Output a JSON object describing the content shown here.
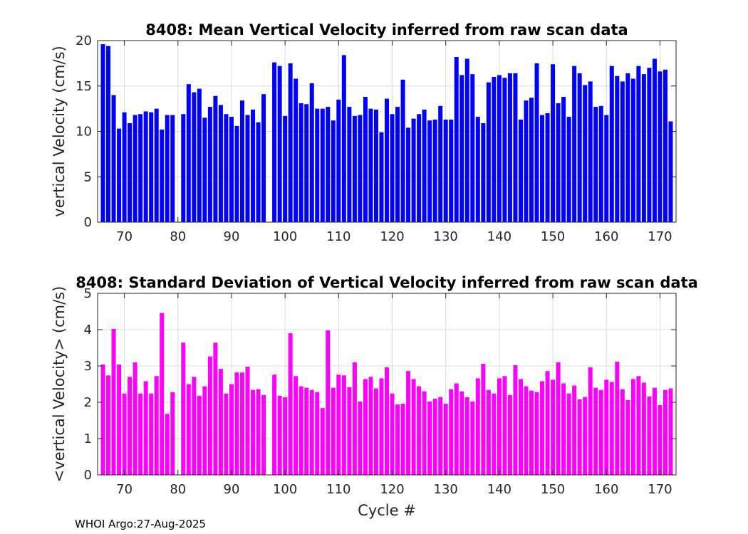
{
  "footer": "WHOI Argo:27-Aug-2025",
  "chart_data": [
    {
      "type": "bar",
      "title": "8408: Mean Vertical Velocity inferred from raw scan data",
      "xlabel": "",
      "ylabel": "vertical Velocity (cm/s)",
      "xlim": [
        65,
        173
      ],
      "ylim": [
        0,
        20
      ],
      "xticks": [
        70,
        80,
        90,
        100,
        110,
        120,
        130,
        140,
        150,
        160,
        170
      ],
      "yticks": [
        0,
        5,
        10,
        15,
        20
      ],
      "grid": true,
      "color": "#0000ff",
      "x": [
        66,
        67,
        68,
        69,
        70,
        71,
        72,
        73,
        74,
        75,
        76,
        77,
        78,
        79,
        81,
        82,
        83,
        84,
        85,
        86,
        87,
        88,
        89,
        90,
        91,
        92,
        93,
        94,
        95,
        96,
        98,
        99,
        100,
        101,
        102,
        103,
        104,
        105,
        106,
        107,
        108,
        109,
        110,
        111,
        112,
        113,
        114,
        115,
        116,
        117,
        118,
        119,
        120,
        121,
        122,
        123,
        124,
        125,
        126,
        127,
        128,
        129,
        130,
        131,
        132,
        133,
        134,
        135,
        136,
        137,
        138,
        139,
        140,
        141,
        142,
        143,
        144,
        145,
        146,
        147,
        148,
        149,
        150,
        151,
        152,
        153,
        154,
        155,
        156,
        157,
        158,
        159,
        160,
        161,
        162,
        163,
        164,
        165,
        166,
        167,
        168,
        169,
        170,
        171,
        172
      ],
      "values": [
        19.6,
        19.4,
        14.0,
        10.3,
        12.1,
        10.9,
        11.8,
        11.9,
        12.2,
        12.1,
        12.5,
        10.2,
        11.8,
        11.8,
        11.9,
        15.2,
        14.3,
        14.7,
        11.5,
        12.7,
        13.9,
        12.9,
        11.9,
        11.6,
        10.6,
        13.4,
        11.8,
        12.4,
        11.0,
        14.1,
        17.6,
        17.2,
        11.7,
        17.5,
        15.8,
        13.1,
        13.0,
        15.3,
        12.5,
        12.5,
        12.7,
        11.2,
        13.5,
        18.4,
        12.7,
        11.7,
        11.8,
        13.8,
        12.5,
        12.4,
        9.9,
        13.6,
        11.9,
        12.7,
        15.7,
        10.4,
        11.4,
        11.9,
        12.4,
        11.2,
        11.3,
        12.8,
        11.3,
        11.3,
        18.2,
        16.2,
        18.0,
        16.3,
        11.6,
        10.9,
        15.4,
        16.0,
        16.2,
        15.9,
        16.4,
        16.4,
        11.3,
        13.4,
        13.7,
        17.5,
        11.8,
        12.0,
        17.4,
        13.1,
        13.8,
        11.6,
        17.2,
        16.4,
        15.1,
        15.5,
        12.7,
        12.8,
        11.8,
        17.2,
        16.1,
        15.5,
        16.4,
        15.8,
        17.2,
        16.3,
        17.0,
        18.0,
        16.6,
        16.8,
        11.1
      ]
    },
    {
      "type": "bar",
      "title": "8408: Standard Deviation of Vertical Velocity inferred from raw scan data",
      "xlabel": "Cycle #",
      "ylabel": "<vertical Velocity> (cm/s)",
      "xlim": [
        65,
        173
      ],
      "ylim": [
        0,
        5
      ],
      "xticks": [
        70,
        80,
        90,
        100,
        110,
        120,
        130,
        140,
        150,
        160,
        170
      ],
      "yticks": [
        0,
        1,
        2,
        3,
        4,
        5
      ],
      "grid": true,
      "color": "#ff00ff",
      "x": [
        66,
        67,
        68,
        69,
        70,
        71,
        72,
        73,
        74,
        75,
        76,
        77,
        78,
        79,
        81,
        82,
        83,
        84,
        85,
        86,
        87,
        88,
        89,
        90,
        91,
        92,
        93,
        94,
        95,
        96,
        98,
        99,
        100,
        101,
        102,
        103,
        104,
        105,
        106,
        107,
        108,
        109,
        110,
        111,
        112,
        113,
        114,
        115,
        116,
        117,
        118,
        119,
        120,
        121,
        122,
        123,
        124,
        125,
        126,
        127,
        128,
        129,
        130,
        131,
        132,
        133,
        134,
        135,
        136,
        137,
        138,
        139,
        140,
        141,
        142,
        143,
        144,
        145,
        146,
        147,
        148,
        149,
        150,
        151,
        152,
        153,
        154,
        155,
        156,
        157,
        158,
        159,
        160,
        161,
        162,
        163,
        164,
        165,
        166,
        167,
        168,
        169,
        170,
        171,
        172
      ],
      "values": [
        3.04,
        2.74,
        4.02,
        3.04,
        2.24,
        2.7,
        3.1,
        2.24,
        2.58,
        2.24,
        2.72,
        4.46,
        1.68,
        2.28,
        3.64,
        2.5,
        2.7,
        2.18,
        2.44,
        3.26,
        3.64,
        2.92,
        2.24,
        2.5,
        2.82,
        2.82,
        2.98,
        2.34,
        2.36,
        2.2,
        2.76,
        2.18,
        2.14,
        3.9,
        2.72,
        2.44,
        2.4,
        2.34,
        2.28,
        1.84,
        3.98,
        2.4,
        2.76,
        2.74,
        2.42,
        3.1,
        2.02,
        2.64,
        2.7,
        2.38,
        2.66,
        2.96,
        2.24,
        1.94,
        1.96,
        2.86,
        2.64,
        2.44,
        2.3,
        2.02,
        2.1,
        2.14,
        1.96,
        2.36,
        2.52,
        2.3,
        2.14,
        2.02,
        2.66,
        3.06,
        2.34,
        2.24,
        2.66,
        2.72,
        2.2,
        3.02,
        2.64,
        2.44,
        2.32,
        2.28,
        2.58,
        2.86,
        2.62,
        3.1,
        2.52,
        2.24,
        2.46,
        2.08,
        2.14,
        2.96,
        2.4,
        2.34,
        2.62,
        2.56,
        3.12,
        2.36,
        2.06,
        2.64,
        2.72,
        2.54,
        2.16,
        2.4,
        1.92,
        2.34,
        2.38
      ]
    }
  ]
}
